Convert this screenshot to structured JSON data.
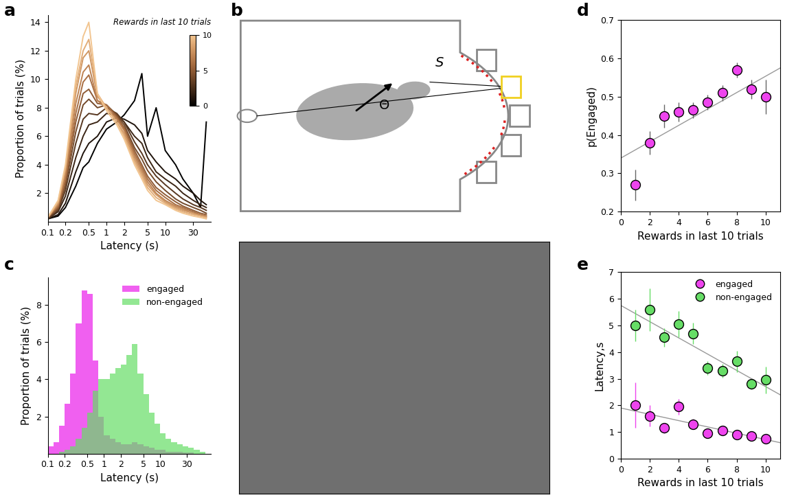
{
  "chart_data": [
    {
      "panel": "a",
      "type": "line",
      "log": "x",
      "x_label": "Latency (s)",
      "y_label": "Proportion of trials (%)",
      "x": [
        0.1,
        0.15,
        0.2,
        0.3,
        0.4,
        0.5,
        0.7,
        1,
        1.5,
        2,
        3,
        4,
        5,
        7,
        10,
        15,
        20,
        30,
        40,
        50
      ],
      "xlim": [
        0.1,
        60
      ],
      "xticks": [
        0.1,
        0.2,
        0.5,
        1,
        2,
        5,
        10,
        30
      ],
      "ylim": [
        0,
        14.5
      ],
      "yticks": [
        2,
        4,
        6,
        8,
        10,
        12,
        14
      ],
      "colorbar": {
        "label": "Rewards in last 10 trials",
        "range": [
          0,
          10
        ],
        "ticks": [
          0,
          5,
          10
        ]
      },
      "series": [
        {
          "color": "#000000",
          "values": [
            0.2,
            0.4,
            1.0,
            2.5,
            3.8,
            4.2,
            5.5,
            6.5,
            7.0,
            7.5,
            8.5,
            10.4,
            6.0,
            8.0,
            5.0,
            4.0,
            3.0,
            2.0,
            1.0,
            7.0
          ]
        },
        {
          "color": "#1f130b",
          "values": [
            0.2,
            0.5,
            1.3,
            3.5,
            4.8,
            5.5,
            6.0,
            7.0,
            7.3,
            7.2,
            6.8,
            6.2,
            5.0,
            4.2,
            3.5,
            3.0,
            2.5,
            2.0,
            1.5,
            1.2
          ]
        },
        {
          "color": "#3b2515",
          "values": [
            0.2,
            0.7,
            1.8,
            4.5,
            6.0,
            6.8,
            7.0,
            7.6,
            7.5,
            7.0,
            6.0,
            5.5,
            4.5,
            3.5,
            3.0,
            2.5,
            2.0,
            1.5,
            1.2,
            1.0
          ]
        },
        {
          "color": "#573720",
          "values": [
            0.2,
            0.8,
            2.2,
            5.5,
            7.2,
            7.6,
            7.5,
            8.0,
            7.6,
            7.0,
            5.6,
            4.8,
            4.0,
            3.2,
            2.6,
            2.0,
            1.6,
            1.2,
            1.0,
            0.8
          ]
        },
        {
          "color": "#73492a",
          "values": [
            0.3,
            0.9,
            2.5,
            6.3,
            8.2,
            8.6,
            8.0,
            8.2,
            7.5,
            6.8,
            5.2,
            4.4,
            3.6,
            2.8,
            2.2,
            1.6,
            1.3,
            1.0,
            0.8,
            0.6
          ]
        },
        {
          "color": "#8f5b35",
          "values": [
            0.3,
            1.0,
            2.8,
            7.0,
            9.0,
            9.3,
            8.3,
            8.2,
            7.4,
            6.6,
            5.0,
            4.0,
            3.2,
            2.4,
            1.9,
            1.4,
            1.1,
            0.8,
            0.6,
            0.5
          ]
        },
        {
          "color": "#a86e42",
          "values": [
            0.3,
            1.1,
            3.0,
            7.6,
            9.8,
            10.3,
            8.5,
            8.2,
            7.3,
            6.5,
            4.8,
            3.8,
            3.0,
            2.2,
            1.7,
            1.2,
            1.0,
            0.7,
            0.5,
            0.4
          ]
        },
        {
          "color": "#bd8252",
          "values": [
            0.3,
            1.2,
            3.3,
            8.3,
            10.5,
            11.0,
            8.5,
            8.0,
            7.2,
            6.4,
            4.6,
            3.6,
            2.8,
            2.0,
            1.5,
            1.1,
            0.9,
            0.6,
            0.5,
            0.4
          ]
        },
        {
          "color": "#d09763",
          "values": [
            0.3,
            1.3,
            3.6,
            9.0,
            11.5,
            12.0,
            8.8,
            8.0,
            7.0,
            6.2,
            4.4,
            3.4,
            2.6,
            1.9,
            1.4,
            1.0,
            0.8,
            0.6,
            0.4,
            0.3
          ]
        },
        {
          "color": "#e2ad78",
          "values": [
            0.3,
            1.4,
            3.8,
            9.5,
            12.0,
            12.8,
            9.0,
            8.0,
            7.0,
            6.0,
            4.2,
            3.2,
            2.4,
            1.7,
            1.3,
            0.9,
            0.7,
            0.5,
            0.4,
            0.3
          ]
        },
        {
          "color": "#f2c590",
          "values": [
            0.3,
            1.5,
            4.0,
            10.0,
            13.0,
            14.0,
            9.0,
            7.8,
            6.8,
            5.8,
            4.0,
            3.0,
            2.2,
            1.5,
            1.2,
            0.8,
            0.6,
            0.4,
            0.3,
            0.2
          ]
        }
      ]
    },
    {
      "panel": "b",
      "type": "diagram",
      "labels": [
        "S",
        "Θ"
      ]
    },
    {
      "panel": "c",
      "type": "histogram",
      "log": "x",
      "legend": "upper right",
      "x_label": "Latency (s)",
      "y_label": "Proportion of trials (%)",
      "bins": [
        0.1,
        0.126,
        0.158,
        0.2,
        0.251,
        0.316,
        0.398,
        0.501,
        0.631,
        0.794,
        1,
        1.26,
        1.58,
        2,
        2.51,
        3.16,
        3.98,
        5.01,
        6.31,
        7.94,
        10,
        12.6,
        15.8,
        20,
        25.1,
        31.6,
        39.8,
        50.1,
        63.1
      ],
      "xlim": [
        0.1,
        80
      ],
      "xticks": [
        0.1,
        0.2,
        0.5,
        1,
        2,
        5,
        10,
        30
      ],
      "ylim": [
        0,
        9.5
      ],
      "yticks": [
        2,
        4,
        6,
        8
      ],
      "series": [
        {
          "name": "engaged",
          "color": "#ee44ee",
          "values": [
            0.4,
            0.6,
            1.5,
            2.7,
            4.3,
            7.0,
            8.8,
            8.6,
            5.0,
            2.0,
            1.0,
            0.8,
            0.6,
            0.5,
            0.5,
            0.6,
            0.5,
            0.4,
            0.3,
            0.2,
            0.2,
            0.1,
            0.1,
            0.1,
            0.05,
            0.05,
            0,
            0
          ]
        },
        {
          "name": "non-engaged",
          "color": "#66dd66",
          "values": [
            0,
            0,
            0.1,
            0.2,
            0.4,
            0.8,
            1.4,
            2.2,
            3.4,
            4.0,
            4.0,
            4.3,
            4.6,
            4.8,
            5.3,
            5.9,
            4.3,
            3.2,
            2.2,
            1.6,
            1.1,
            0.8,
            0.6,
            0.5,
            0.4,
            0.3,
            0.2,
            0.1
          ]
        }
      ]
    },
    {
      "panel": "d",
      "type": "scatter",
      "marker": "circle",
      "x_label": "Rewards in last 10 trials",
      "y_label": "p(Engaged)",
      "x": [
        1,
        2,
        3,
        4,
        5,
        6,
        7,
        8,
        9,
        10
      ],
      "xlim": [
        0,
        11
      ],
      "xticks": [
        0,
        2,
        4,
        6,
        8,
        10
      ],
      "ylim": [
        0.2,
        0.7
      ],
      "yticks": [
        0.2,
        0.3,
        0.4,
        0.5,
        0.6,
        0.7
      ],
      "color": "#ee44ee",
      "values": [
        0.27,
        0.38,
        0.45,
        0.46,
        0.465,
        0.485,
        0.51,
        0.57,
        0.52,
        0.5
      ],
      "errors": [
        0.04,
        0.03,
        0.03,
        0.025,
        0.02,
        0.02,
        0.02,
        0.02,
        0.025,
        0.045
      ],
      "fit": {
        "x": [
          0,
          11
        ],
        "y": [
          0.34,
          0.575
        ]
      }
    },
    {
      "panel": "e",
      "type": "scatter",
      "marker": "circle",
      "legend": "upper right",
      "x_label": "Rewards in last 10 trials",
      "y_label": "Latency,s",
      "x": [
        1,
        2,
        3,
        4,
        5,
        6,
        7,
        8,
        9,
        10
      ],
      "xlim": [
        0,
        11
      ],
      "xticks": [
        0,
        2,
        4,
        6,
        8,
        10
      ],
      "ylim": [
        0,
        7
      ],
      "yticks": [
        0,
        1,
        2,
        3,
        4,
        5,
        6,
        7
      ],
      "series": [
        {
          "name": "engaged",
          "color": "#ee44ee",
          "values": [
            2.0,
            1.6,
            1.15,
            1.95,
            1.3,
            0.95,
            1.05,
            0.9,
            0.85,
            0.75
          ],
          "errors": [
            0.85,
            0.4,
            0.2,
            0.3,
            0.2,
            0.15,
            0.15,
            0.15,
            0.1,
            0.15
          ],
          "fit": {
            "x": [
              0,
              11
            ],
            "y": [
              1.9,
              0.6
            ]
          }
        },
        {
          "name": "non-engaged",
          "color": "#66dd66",
          "values": [
            5.0,
            5.6,
            4.55,
            5.05,
            4.7,
            3.4,
            3.3,
            3.65,
            2.8,
            2.95
          ],
          "errors": [
            0.6,
            0.8,
            0.35,
            0.5,
            0.4,
            0.25,
            0.25,
            0.4,
            0.2,
            0.5
          ],
          "fit": {
            "x": [
              0,
              11
            ],
            "y": [
              5.75,
              2.4
            ]
          }
        }
      ]
    }
  ]
}
